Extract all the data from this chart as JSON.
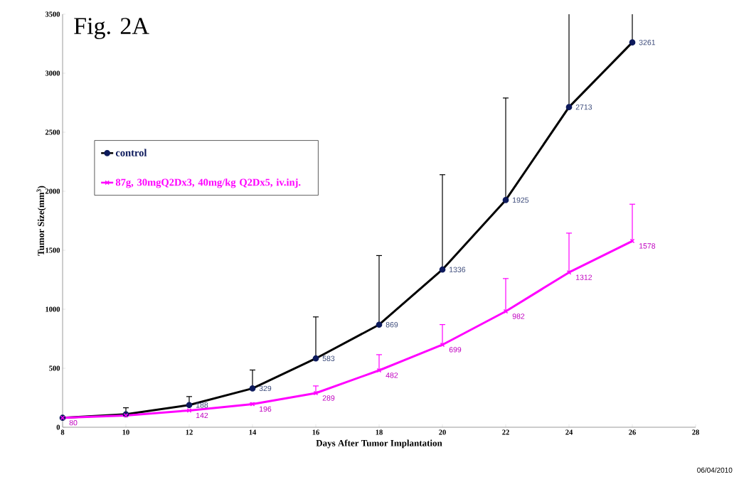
{
  "chart_data": {
    "type": "line",
    "title": "Fig. 2A",
    "xlabel": "Days After Tumor Implantation",
    "ylabel": "Tumor Size(mm$^{3}$)",
    "x": [
      8,
      10,
      12,
      14,
      16,
      18,
      20,
      22,
      24,
      26
    ],
    "series": [
      {
        "name": "control",
        "color": "#000000",
        "marker": "circle",
        "values": [
          80,
          110,
          188,
          329,
          583,
          869,
          1336,
          1925,
          2713,
          3261
        ],
        "value_labels": [
          null,
          null,
          "188",
          "329",
          "583",
          "869",
          "1336",
          "1925",
          "2713",
          "3261"
        ],
        "errors": [
          null,
          [
            110,
            165
          ],
          [
            188,
            260
          ],
          [
            329,
            485
          ],
          [
            583,
            935
          ],
          [
            869,
            1455
          ],
          [
            1336,
            2140
          ],
          [
            1925,
            2790
          ],
          [
            2713,
            3500
          ],
          [
            3261,
            3500
          ]
        ]
      },
      {
        "name": "87g, 30mgQ2Dx3, 40mg/kg Q2Dx5, iv.inj.",
        "color": "#ff00ff",
        "marker": "cross",
        "values": [
          80,
          100,
          142,
          196,
          289,
          482,
          699,
          982,
          1312,
          1578
        ],
        "value_labels": [
          "80",
          null,
          "142",
          "196",
          "289",
          "482",
          "699",
          "982",
          "1312",
          "1578"
        ],
        "errors": [
          null,
          null,
          null,
          [
            196,
            205
          ],
          [
            289,
            350
          ],
          [
            482,
            615
          ],
          [
            699,
            870
          ],
          [
            982,
            1260
          ],
          [
            1312,
            1645
          ],
          [
            1578,
            1890
          ]
        ]
      }
    ],
    "xlim": [
      8,
      28
    ],
    "xticks": [
      8,
      10,
      12,
      14,
      16,
      18,
      20,
      22,
      24,
      26,
      28
    ],
    "ylim": [
      0,
      3500
    ],
    "yticks": [
      0,
      500,
      1000,
      1500,
      2000,
      2500,
      3000,
      3500
    ],
    "grid": false,
    "legend": "left",
    "line_style": "solid",
    "annotations": [
      "06/04/2010"
    ]
  }
}
